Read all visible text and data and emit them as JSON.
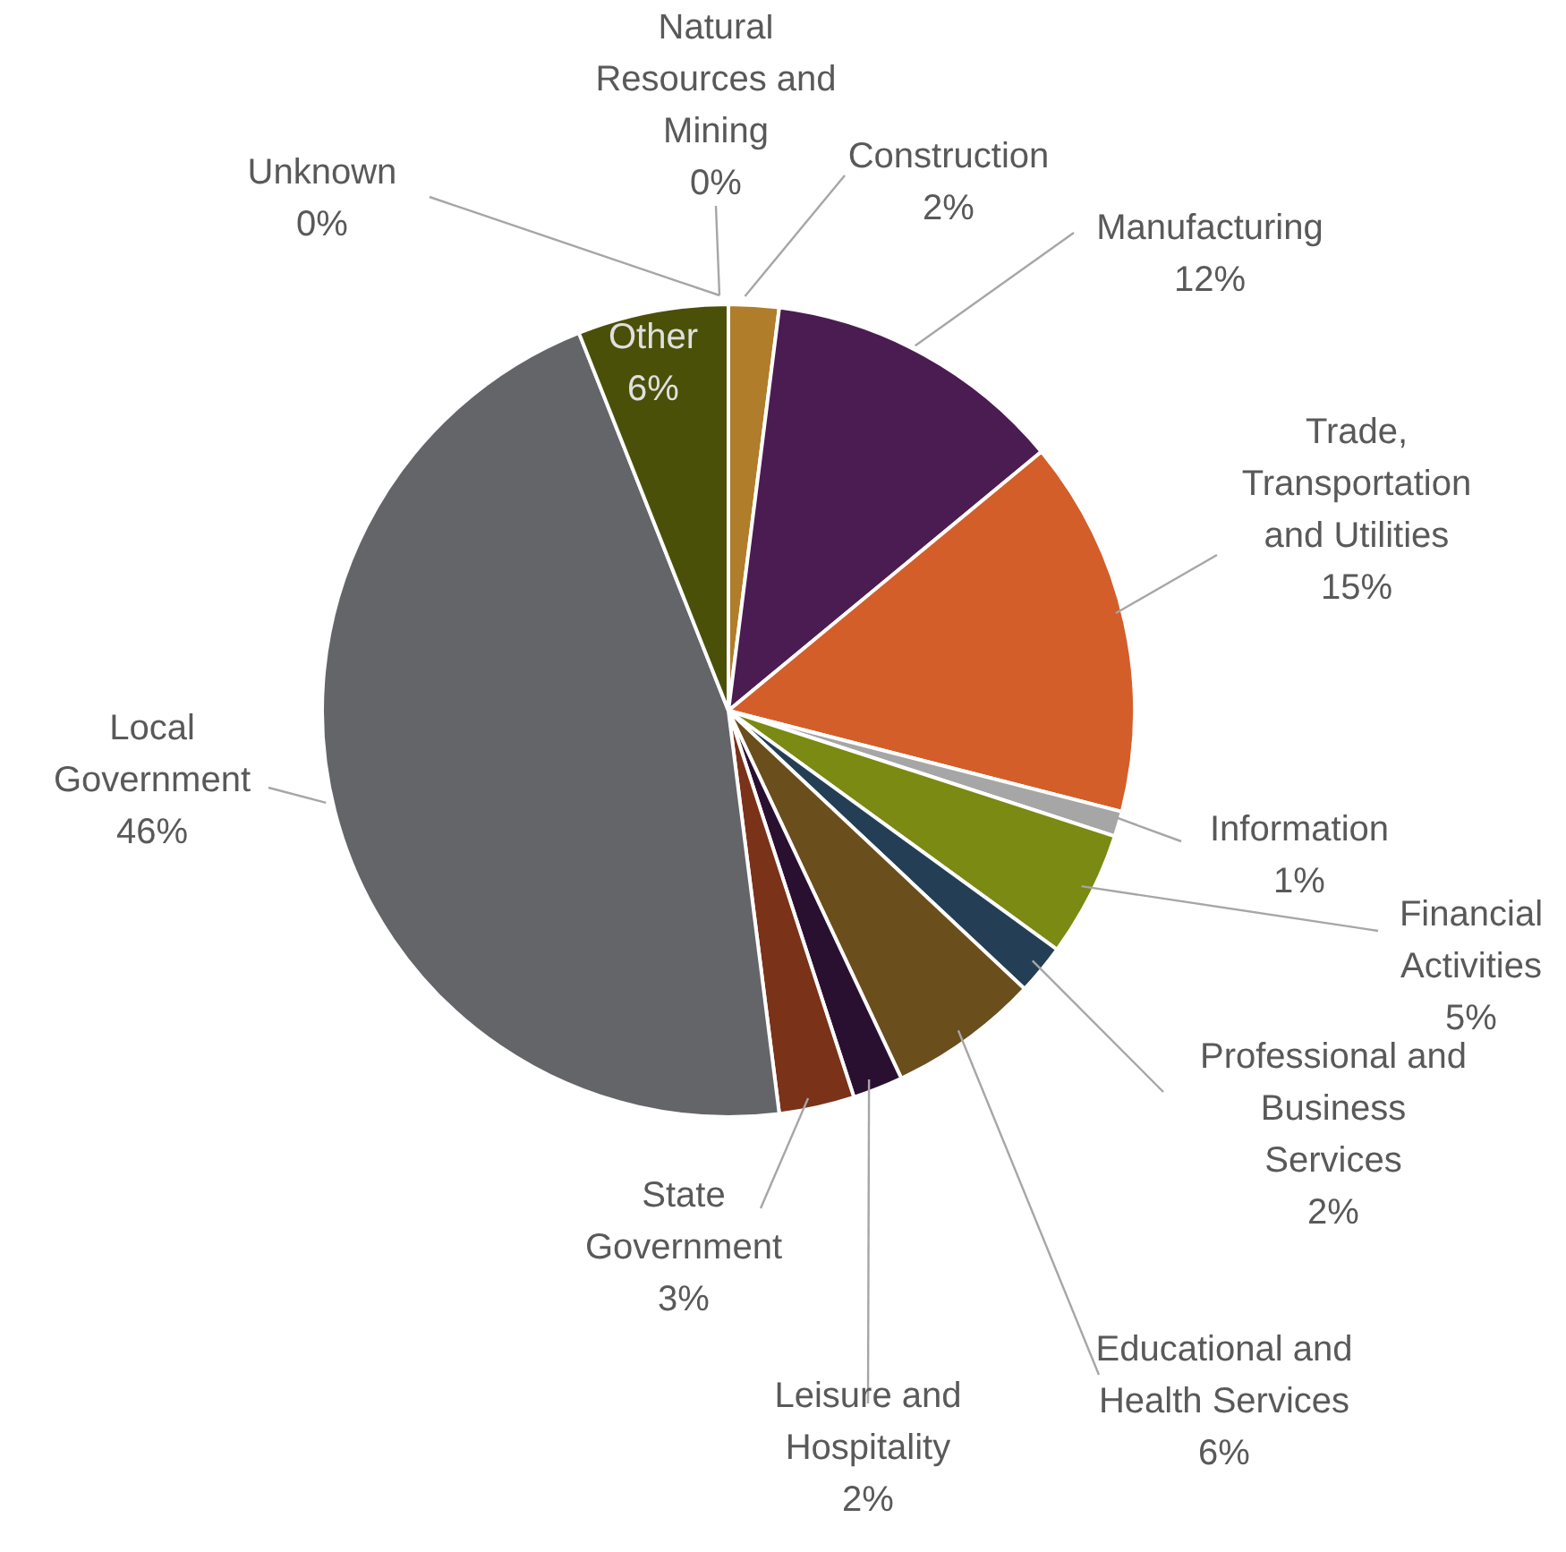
{
  "chart_data": {
    "type": "pie",
    "categories": [
      "Natural Resources and Mining",
      "Construction",
      "Manufacturing",
      "Trade, Transportation and Utilities",
      "Information",
      "Financial Activities",
      "Professional and Business Services",
      "Educational and Health Services",
      "Leisure and Hospitality",
      "State Government",
      "Local Government",
      "Other",
      "Unknown"
    ],
    "values": [
      0,
      2,
      12,
      15,
      1,
      5,
      2,
      6,
      2,
      3,
      46,
      6,
      0
    ],
    "colors": [
      "#7f6f3a",
      "#b07d2a",
      "#4b1c52",
      "#d35e2a",
      "#a6a6a6",
      "#7a8a12",
      "#243f55",
      "#6a4e1c",
      "#2a1030",
      "#7a3218",
      "#636569",
      "#4a5008",
      "#c0c0c0"
    ],
    "value_labels": [
      "0%",
      "2%",
      "12%",
      "15%",
      "1%",
      "5%",
      "2%",
      "6%",
      "2%",
      "3%",
      "46%",
      "6%",
      "0%"
    ]
  }
}
